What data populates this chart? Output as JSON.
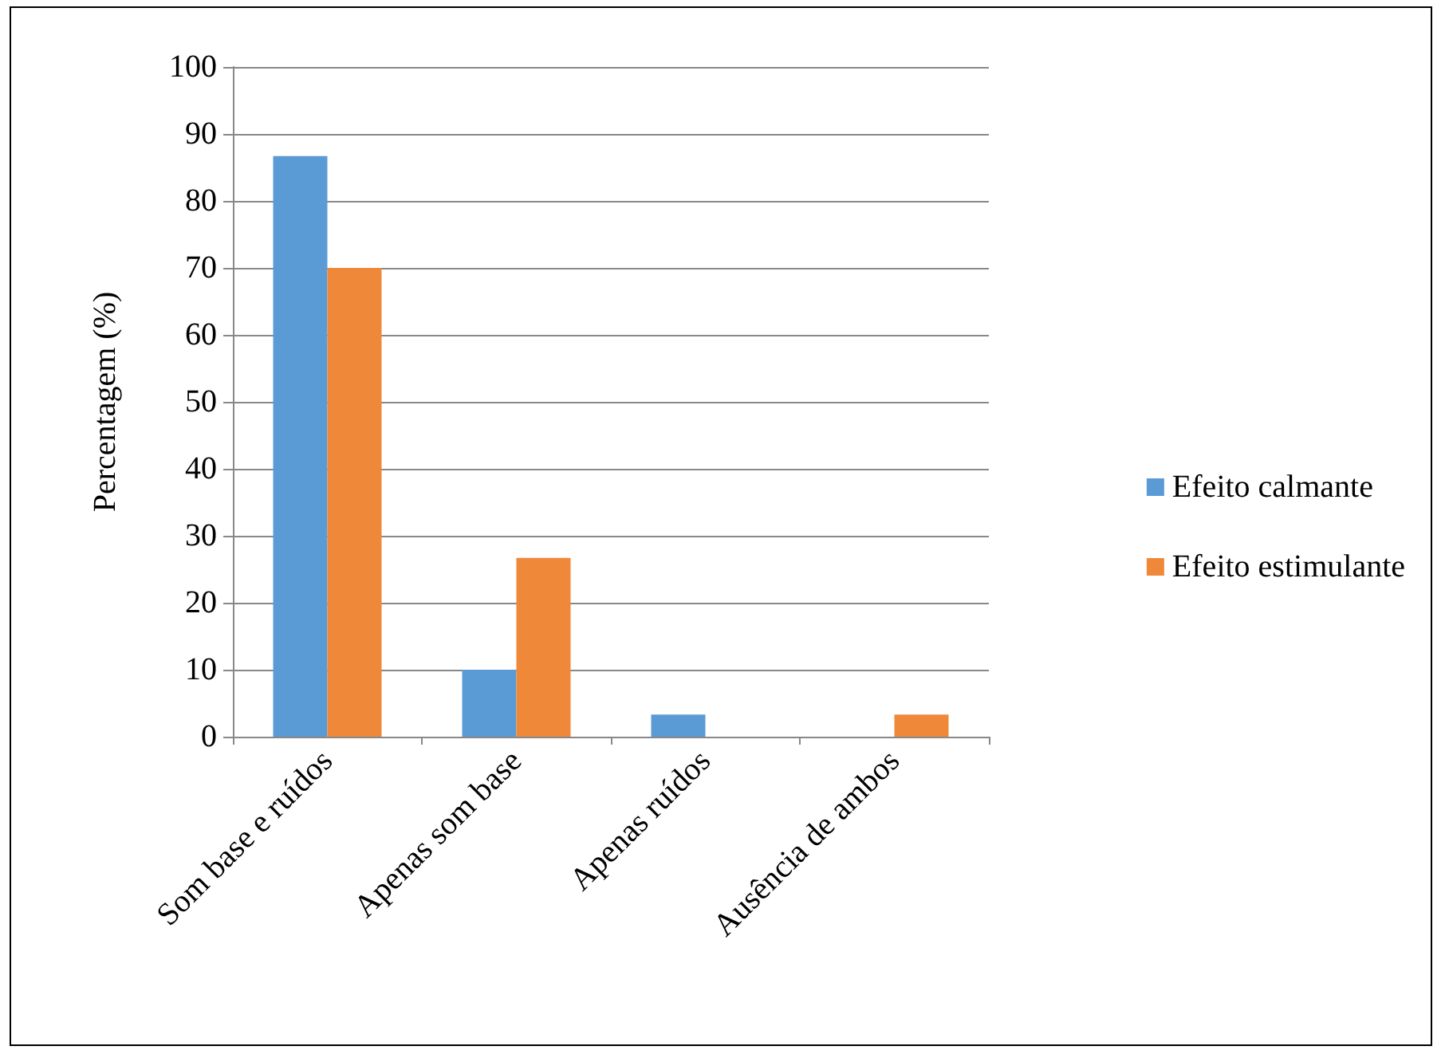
{
  "chart_data": {
    "type": "bar",
    "ylabel": "Percentagem (%)",
    "categories": [
      "Som base e ruídos",
      "Apenas som base",
      "Apenas ruídos",
      "Ausência de ambos"
    ],
    "series": [
      {
        "name": "Efeito calmante",
        "color": "#5b9bd5",
        "values": [
          86.7,
          10,
          3.3,
          0
        ]
      },
      {
        "name": "Efeito estimulante",
        "color": "#f0883a",
        "values": [
          70,
          26.7,
          0,
          3.3
        ]
      }
    ],
    "ylim": [
      0,
      100
    ],
    "yticks": [
      0,
      10,
      20,
      30,
      40,
      50,
      60,
      70,
      80,
      90,
      100
    ],
    "grid": "y",
    "legend": "right"
  }
}
